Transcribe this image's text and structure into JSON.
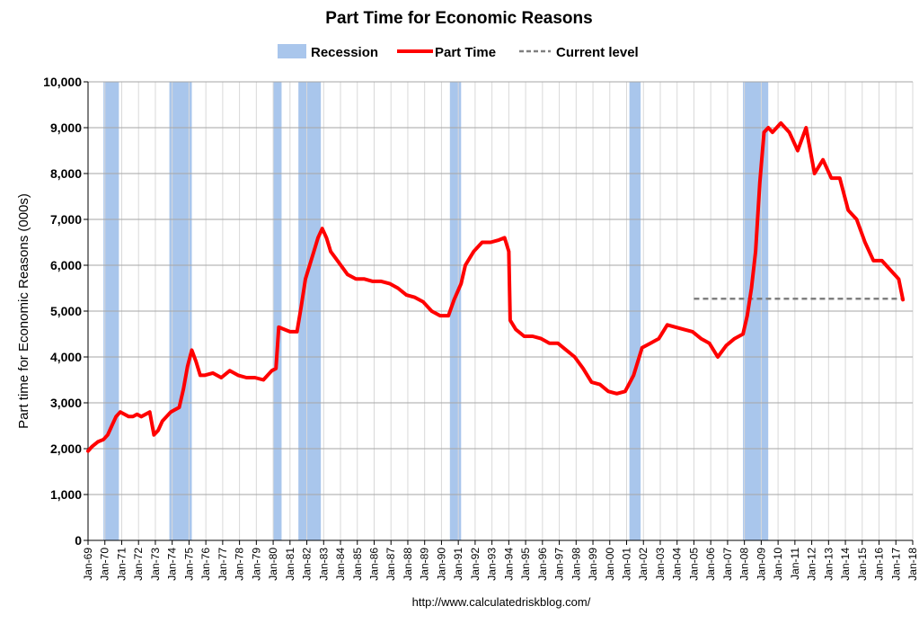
{
  "chart_data": {
    "type": "line",
    "title": "Part Time for Economic Reasons",
    "xlabel": "",
    "ylabel": "Part time for Economic Reasons (000s)",
    "source": "http://www.calculatedriskblog.com/",
    "ylim": [
      0,
      10000
    ],
    "xlim": [
      "Jan-69",
      "Jan-18"
    ],
    "yticks": [
      "0",
      "1,000",
      "2,000",
      "3,000",
      "4,000",
      "5,000",
      "6,000",
      "7,000",
      "8,000",
      "9,000",
      "10,000"
    ],
    "yticks_values": [
      0,
      1000,
      2000,
      3000,
      4000,
      5000,
      6000,
      7000,
      8000,
      9000,
      10000
    ],
    "xticks": [
      "Jan-69",
      "Jan-70",
      "Jan-71",
      "Jan-72",
      "Jan-73",
      "Jan-74",
      "Jan-75",
      "Jan-76",
      "Jan-77",
      "Jan-78",
      "Jan-79",
      "Jan-80",
      "Jan-81",
      "Jan-82",
      "Jan-83",
      "Jan-84",
      "Jan-85",
      "Jan-86",
      "Jan-87",
      "Jan-88",
      "Jan-89",
      "Jan-90",
      "Jan-91",
      "Jan-92",
      "Jan-93",
      "Jan-94",
      "Jan-95",
      "Jan-96",
      "Jan-97",
      "Jan-98",
      "Jan-99",
      "Jan-00",
      "Jan-01",
      "Jan-02",
      "Jan-03",
      "Jan-04",
      "Jan-05",
      "Jan-06",
      "Jan-07",
      "Jan-08",
      "Jan-09",
      "Jan-10",
      "Jan-11",
      "Jan-12",
      "Jan-13",
      "Jan-14",
      "Jan-15",
      "Jan-16",
      "Jan-17",
      "Jan-18"
    ],
    "grid": true,
    "legend_position": "top",
    "legend": [
      {
        "label": "Recession",
        "style": "band",
        "color": "#a9c6ec"
      },
      {
        "label": "Part Time",
        "style": "line",
        "color": "#ff0000"
      },
      {
        "label": "Current level",
        "style": "dashed",
        "color": "#808080"
      }
    ],
    "recessions": [
      {
        "start": "1969-12",
        "end": "1970-11"
      },
      {
        "start": "1973-11",
        "end": "1975-03"
      },
      {
        "start": "1980-01",
        "end": "1980-07"
      },
      {
        "start": "1981-07",
        "end": "1982-11"
      },
      {
        "start": "1990-07",
        "end": "1991-03"
      },
      {
        "start": "2001-03",
        "end": "2001-11"
      },
      {
        "start": "2007-12",
        "end": "2009-06"
      }
    ],
    "series": [
      {
        "name": "Part Time",
        "color": "#ff0000",
        "points": [
          [
            "1969-01",
            1950
          ],
          [
            "1969-04",
            2050
          ],
          [
            "1969-08",
            2150
          ],
          [
            "1969-12",
            2200
          ],
          [
            "1970-03",
            2300
          ],
          [
            "1970-06",
            2500
          ],
          [
            "1970-09",
            2700
          ],
          [
            "1970-12",
            2800
          ],
          [
            "1971-03",
            2750
          ],
          [
            "1971-06",
            2700
          ],
          [
            "1971-09",
            2700
          ],
          [
            "1971-12",
            2750
          ],
          [
            "1972-03",
            2700
          ],
          [
            "1972-06",
            2750
          ],
          [
            "1972-09",
            2800
          ],
          [
            "1972-12",
            2300
          ],
          [
            "1973-03",
            2400
          ],
          [
            "1973-06",
            2600
          ],
          [
            "1973-09",
            2700
          ],
          [
            "1973-12",
            2800
          ],
          [
            "1974-03",
            2850
          ],
          [
            "1974-06",
            2900
          ],
          [
            "1974-09",
            3300
          ],
          [
            "1974-12",
            3800
          ],
          [
            "1975-03",
            4150
          ],
          [
            "1975-06",
            3900
          ],
          [
            "1975-09",
            3600
          ],
          [
            "1975-12",
            3600
          ],
          [
            "1976-06",
            3650
          ],
          [
            "1976-12",
            3550
          ],
          [
            "1977-06",
            3700
          ],
          [
            "1977-12",
            3600
          ],
          [
            "1978-06",
            3550
          ],
          [
            "1978-12",
            3550
          ],
          [
            "1979-06",
            3500
          ],
          [
            "1979-12",
            3700
          ],
          [
            "1980-03",
            3750
          ],
          [
            "1980-05",
            4650
          ],
          [
            "1980-09",
            4600
          ],
          [
            "1981-01",
            4550
          ],
          [
            "1981-06",
            4550
          ],
          [
            "1981-09",
            5100
          ],
          [
            "1981-12",
            5700
          ],
          [
            "1982-03",
            6000
          ],
          [
            "1982-06",
            6300
          ],
          [
            "1982-09",
            6600
          ],
          [
            "1982-12",
            6800
          ],
          [
            "1983-03",
            6600
          ],
          [
            "1983-06",
            6300
          ],
          [
            "1983-12",
            6050
          ],
          [
            "1984-06",
            5800
          ],
          [
            "1984-12",
            5700
          ],
          [
            "1985-06",
            5700
          ],
          [
            "1985-12",
            5650
          ],
          [
            "1986-06",
            5650
          ],
          [
            "1986-12",
            5600
          ],
          [
            "1987-06",
            5500
          ],
          [
            "1987-12",
            5350
          ],
          [
            "1988-06",
            5300
          ],
          [
            "1988-12",
            5200
          ],
          [
            "1989-06",
            5000
          ],
          [
            "1989-12",
            4900
          ],
          [
            "1990-06",
            4900
          ],
          [
            "1990-10",
            5250
          ],
          [
            "1991-03",
            5600
          ],
          [
            "1991-06",
            6000
          ],
          [
            "1991-12",
            6300
          ],
          [
            "1992-06",
            6500
          ],
          [
            "1992-12",
            6500
          ],
          [
            "1993-06",
            6550
          ],
          [
            "1993-10",
            6600
          ],
          [
            "1994-01",
            6300
          ],
          [
            "1994-02",
            4800
          ],
          [
            "1994-06",
            4600
          ],
          [
            "1994-12",
            4450
          ],
          [
            "1995-06",
            4450
          ],
          [
            "1995-12",
            4400
          ],
          [
            "1996-06",
            4300
          ],
          [
            "1996-12",
            4300
          ],
          [
            "1997-06",
            4150
          ],
          [
            "1997-12",
            4000
          ],
          [
            "1998-06",
            3750
          ],
          [
            "1998-12",
            3450
          ],
          [
            "1999-06",
            3400
          ],
          [
            "1999-12",
            3250
          ],
          [
            "2000-06",
            3200
          ],
          [
            "2000-12",
            3250
          ],
          [
            "2001-06",
            3600
          ],
          [
            "2001-12",
            4200
          ],
          [
            "2002-06",
            4300
          ],
          [
            "2002-12",
            4400
          ],
          [
            "2003-06",
            4700
          ],
          [
            "2003-12",
            4650
          ],
          [
            "2004-06",
            4600
          ],
          [
            "2004-12",
            4550
          ],
          [
            "2005-06",
            4400
          ],
          [
            "2005-12",
            4300
          ],
          [
            "2006-06",
            4000
          ],
          [
            "2006-12",
            4250
          ],
          [
            "2007-06",
            4400
          ],
          [
            "2007-12",
            4500
          ],
          [
            "2008-03",
            4900
          ],
          [
            "2008-06",
            5500
          ],
          [
            "2008-09",
            6300
          ],
          [
            "2008-12",
            7800
          ],
          [
            "2009-03",
            8900
          ],
          [
            "2009-06",
            9000
          ],
          [
            "2009-09",
            8900
          ],
          [
            "2010-03",
            9100
          ],
          [
            "2010-09",
            8900
          ],
          [
            "2011-03",
            8500
          ],
          [
            "2011-09",
            9000
          ],
          [
            "2012-03",
            8000
          ],
          [
            "2012-09",
            8300
          ],
          [
            "2013-03",
            7900
          ],
          [
            "2013-09",
            7900
          ],
          [
            "2014-03",
            7200
          ],
          [
            "2014-09",
            7000
          ],
          [
            "2015-03",
            6500
          ],
          [
            "2015-09",
            6100
          ],
          [
            "2016-03",
            6100
          ],
          [
            "2016-09",
            5900
          ],
          [
            "2017-03",
            5700
          ],
          [
            "2017-06",
            5250
          ]
        ]
      }
    ],
    "current_level": {
      "value": 5270,
      "from": "2005-01",
      "to": "2017-07",
      "color": "#808080"
    }
  }
}
